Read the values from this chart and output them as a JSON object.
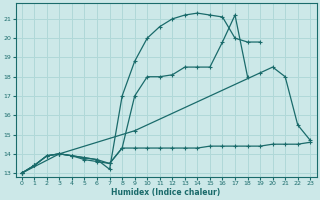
{
  "xlabel": "Humidex (Indice chaleur)",
  "xlim": [
    -0.5,
    23.5
  ],
  "ylim": [
    12.8,
    21.8
  ],
  "yticks": [
    13,
    14,
    15,
    16,
    17,
    18,
    19,
    20,
    21
  ],
  "xticks": [
    0,
    1,
    2,
    3,
    4,
    5,
    6,
    7,
    8,
    9,
    10,
    11,
    12,
    13,
    14,
    15,
    16,
    17,
    18,
    19,
    20,
    21,
    22,
    23
  ],
  "bg_color": "#cce8e8",
  "grid_color": "#b0d8d8",
  "line_color": "#1a6b6b",
  "lines": [
    {
      "x": [
        0,
        1,
        2,
        3,
        4,
        5,
        6,
        7,
        8,
        9,
        10,
        11,
        12,
        13,
        14,
        15,
        16,
        17,
        18,
        19
      ],
      "y": [
        13,
        13.4,
        13.9,
        14.0,
        13.9,
        13.8,
        13.7,
        13.2,
        17.0,
        18.8,
        20.0,
        20.6,
        21.0,
        21.2,
        21.3,
        21.2,
        21.1,
        20.0,
        19.8,
        19.8
      ]
    },
    {
      "x": [
        0,
        1,
        2,
        3,
        4,
        5,
        6,
        7,
        8,
        9,
        10,
        11,
        12,
        13,
        14,
        15,
        16,
        17,
        18
      ],
      "y": [
        13,
        13.4,
        13.9,
        14.0,
        13.9,
        13.7,
        13.6,
        13.5,
        14.3,
        17.0,
        18.0,
        18.0,
        18.1,
        18.5,
        18.5,
        18.5,
        19.8,
        21.2,
        18.0
      ]
    },
    {
      "x": [
        0,
        1,
        2,
        3,
        4,
        5,
        6,
        7,
        8,
        9,
        10,
        11,
        12,
        13,
        14,
        15,
        16,
        17,
        18,
        19,
        20,
        21,
        22,
        23
      ],
      "y": [
        13.0,
        13.4,
        13.9,
        14.0,
        13.9,
        13.8,
        13.7,
        13.5,
        14.3,
        14.3,
        14.3,
        14.3,
        14.3,
        14.3,
        14.3,
        14.4,
        14.4,
        14.4,
        14.4,
        14.4,
        14.5,
        14.5,
        14.5,
        14.6
      ]
    },
    {
      "x": [
        0,
        3,
        9,
        19,
        20,
        21,
        22,
        23
      ],
      "y": [
        13.0,
        14.0,
        15.2,
        18.2,
        18.5,
        18.0,
        15.5,
        14.7
      ]
    }
  ]
}
